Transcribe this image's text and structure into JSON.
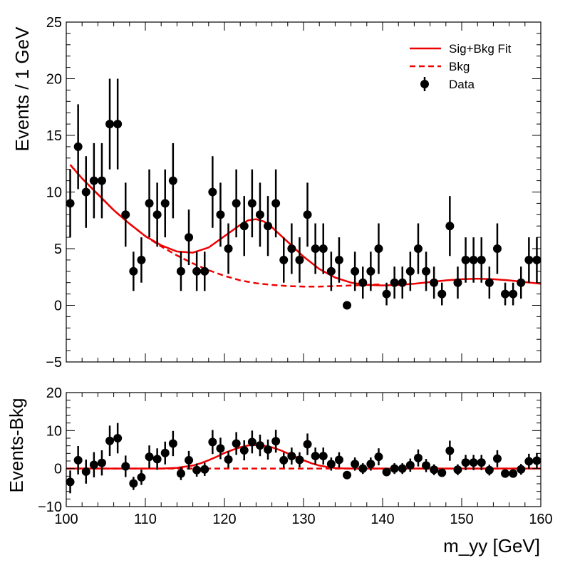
{
  "chart_data": [
    {
      "type": "scatter",
      "panel": "main",
      "ylabel": "Events / 1 GeV",
      "xlim": [
        100,
        160
      ],
      "ylim": [
        -5,
        25
      ],
      "yticks": [
        -5,
        0,
        5,
        10,
        15,
        20,
        25
      ],
      "legend": {
        "placement": "top-right",
        "entries": [
          {
            "label": "Sig+Bkg Fit",
            "style": "solid-line",
            "color": "#ee0000"
          },
          {
            "label": "Bkg",
            "style": "dashed-line",
            "color": "#ee0000"
          },
          {
            "label": "Data",
            "style": "marker-errorbar",
            "color": "#000000"
          }
        ]
      },
      "series": [
        {
          "name": "Data",
          "color": "#000000",
          "x": [
            100.5,
            101.5,
            102.5,
            103.5,
            104.5,
            105.5,
            106.5,
            107.5,
            108.5,
            109.5,
            110.5,
            111.5,
            112.5,
            113.5,
            114.5,
            115.5,
            116.5,
            117.5,
            118.5,
            119.5,
            120.5,
            121.5,
            122.5,
            123.5,
            124.5,
            125.5,
            126.5,
            127.5,
            128.5,
            129.5,
            130.5,
            131.5,
            132.5,
            133.5,
            134.5,
            135.5,
            136.5,
            137.5,
            138.5,
            139.5,
            140.5,
            141.5,
            142.5,
            143.5,
            144.5,
            145.5,
            146.5,
            147.5,
            148.5,
            149.5,
            150.5,
            151.5,
            152.5,
            153.5,
            154.5,
            155.5,
            156.5,
            157.5,
            158.5,
            159.5
          ],
          "y": [
            9,
            14,
            10,
            11,
            11,
            16,
            16,
            8,
            3,
            4,
            9,
            8,
            9,
            11,
            3,
            6,
            3,
            3,
            10,
            8,
            5,
            9,
            7,
            9,
            8,
            7,
            9,
            4,
            5,
            4,
            8,
            5,
            5,
            3,
            4,
            0,
            3,
            2,
            3,
            5,
            1,
            2,
            2,
            3,
            5,
            3,
            2,
            1,
            7,
            2,
            4,
            4,
            4,
            2,
            5,
            1,
            1,
            2,
            4,
            4
          ]
        },
        {
          "name": "Sig+Bkg Fit",
          "color": "#ee0000",
          "x": [
            100.5,
            102,
            104,
            106,
            108,
            110,
            112,
            114,
            116,
            118,
            120,
            122,
            123,
            124,
            125,
            126,
            128,
            130,
            132,
            134,
            136,
            138,
            140,
            142,
            144,
            146,
            148,
            150,
            152,
            154,
            156,
            158,
            160
          ],
          "y": [
            12.4,
            11.2,
            9.8,
            8.4,
            7.2,
            6.1,
            5.3,
            4.75,
            4.65,
            5.1,
            6.1,
            7.1,
            7.5,
            7.6,
            7.4,
            6.9,
            5.6,
            4.3,
            3.2,
            2.45,
            2.0,
            1.8,
            1.75,
            1.8,
            1.9,
            2.05,
            2.2,
            2.3,
            2.35,
            2.3,
            2.2,
            2.05,
            1.9
          ]
        },
        {
          "name": "Bkg",
          "color": "#ee0000",
          "x": [
            100.5,
            102,
            104,
            106,
            108,
            110,
            112,
            114,
            116,
            118,
            120,
            122,
            124,
            126,
            128,
            130,
            132,
            134,
            136,
            138,
            140
          ],
          "y": [
            12.4,
            11.2,
            9.8,
            8.4,
            7.2,
            6.1,
            5.2,
            4.4,
            3.7,
            3.1,
            2.6,
            2.2,
            1.95,
            1.8,
            1.7,
            1.65,
            1.65,
            1.7,
            1.75,
            1.8,
            1.85
          ]
        }
      ]
    },
    {
      "type": "scatter",
      "panel": "residual",
      "xlabel": "m_yy [GeV]",
      "ylabel": "Events-Bkg",
      "xlim": [
        100,
        160
      ],
      "ylim": [
        -10,
        20
      ],
      "xticks": [
        100,
        110,
        120,
        130,
        140,
        150,
        160
      ],
      "yticks": [
        -10,
        0,
        10,
        20
      ],
      "series": [
        {
          "name": "Data",
          "color": "#000000",
          "x": [
            100.5,
            101.5,
            102.5,
            103.5,
            104.5,
            105.5,
            106.5,
            107.5,
            108.5,
            109.5,
            110.5,
            111.5,
            112.5,
            113.5,
            114.5,
            115.5,
            116.5,
            117.5,
            118.5,
            119.5,
            120.5,
            121.5,
            122.5,
            123.5,
            124.5,
            125.5,
            126.5,
            127.5,
            128.5,
            129.5,
            130.5,
            131.5,
            132.5,
            133.5,
            134.5,
            135.5,
            136.5,
            137.5,
            138.5,
            139.5,
            140.5,
            141.5,
            142.5,
            143.5,
            144.5,
            145.5,
            146.5,
            147.5,
            148.5,
            149.5,
            150.5,
            151.5,
            152.5,
            153.5,
            154.5,
            155.5,
            156.5,
            157.5,
            158.5,
            159.5
          ],
          "y": [
            -3.5,
            2.2,
            -0.8,
            1.0,
            1.5,
            7.3,
            8.0,
            0.6,
            -3.9,
            -2.3,
            3.1,
            2.5,
            4.1,
            6.6,
            -1.3,
            2.2,
            -0.4,
            -0.2,
            7.0,
            5.3,
            2.4,
            6.6,
            4.8,
            7.0,
            6.1,
            5.0,
            7.2,
            2.2,
            3.3,
            2.3,
            6.4,
            3.3,
            3.3,
            1.2,
            2.3,
            -1.7,
            1.2,
            0.0,
            1.2,
            3.1,
            -0.9,
            0.0,
            0.0,
            0.9,
            2.8,
            0.8,
            -0.3,
            -1.1,
            4.7,
            -0.3,
            1.6,
            1.6,
            1.6,
            -0.4,
            2.6,
            -1.3,
            -1.3,
            -0.2,
            1.9,
            2.1
          ]
        },
        {
          "name": "Sig+Bkg Fit",
          "color": "#ee0000",
          "x": [
            100,
            112,
            114,
            116,
            117,
            118,
            119,
            120,
            121,
            122,
            123,
            124,
            125,
            126,
            127,
            128,
            129,
            130,
            131,
            132,
            133,
            134,
            135,
            136,
            160
          ],
          "y": [
            0,
            0,
            0.2,
            0.8,
            1.4,
            2.2,
            3.1,
            4.1,
            4.9,
            5.6,
            6.1,
            6.2,
            6.0,
            5.6,
            4.9,
            4.0,
            3.1,
            2.2,
            1.4,
            0.8,
            0.4,
            0.15,
            0.05,
            0,
            0
          ]
        },
        {
          "name": "Bkg",
          "color": "#ee0000",
          "x": [
            100,
            160
          ],
          "y": [
            0,
            0
          ]
        }
      ]
    }
  ]
}
